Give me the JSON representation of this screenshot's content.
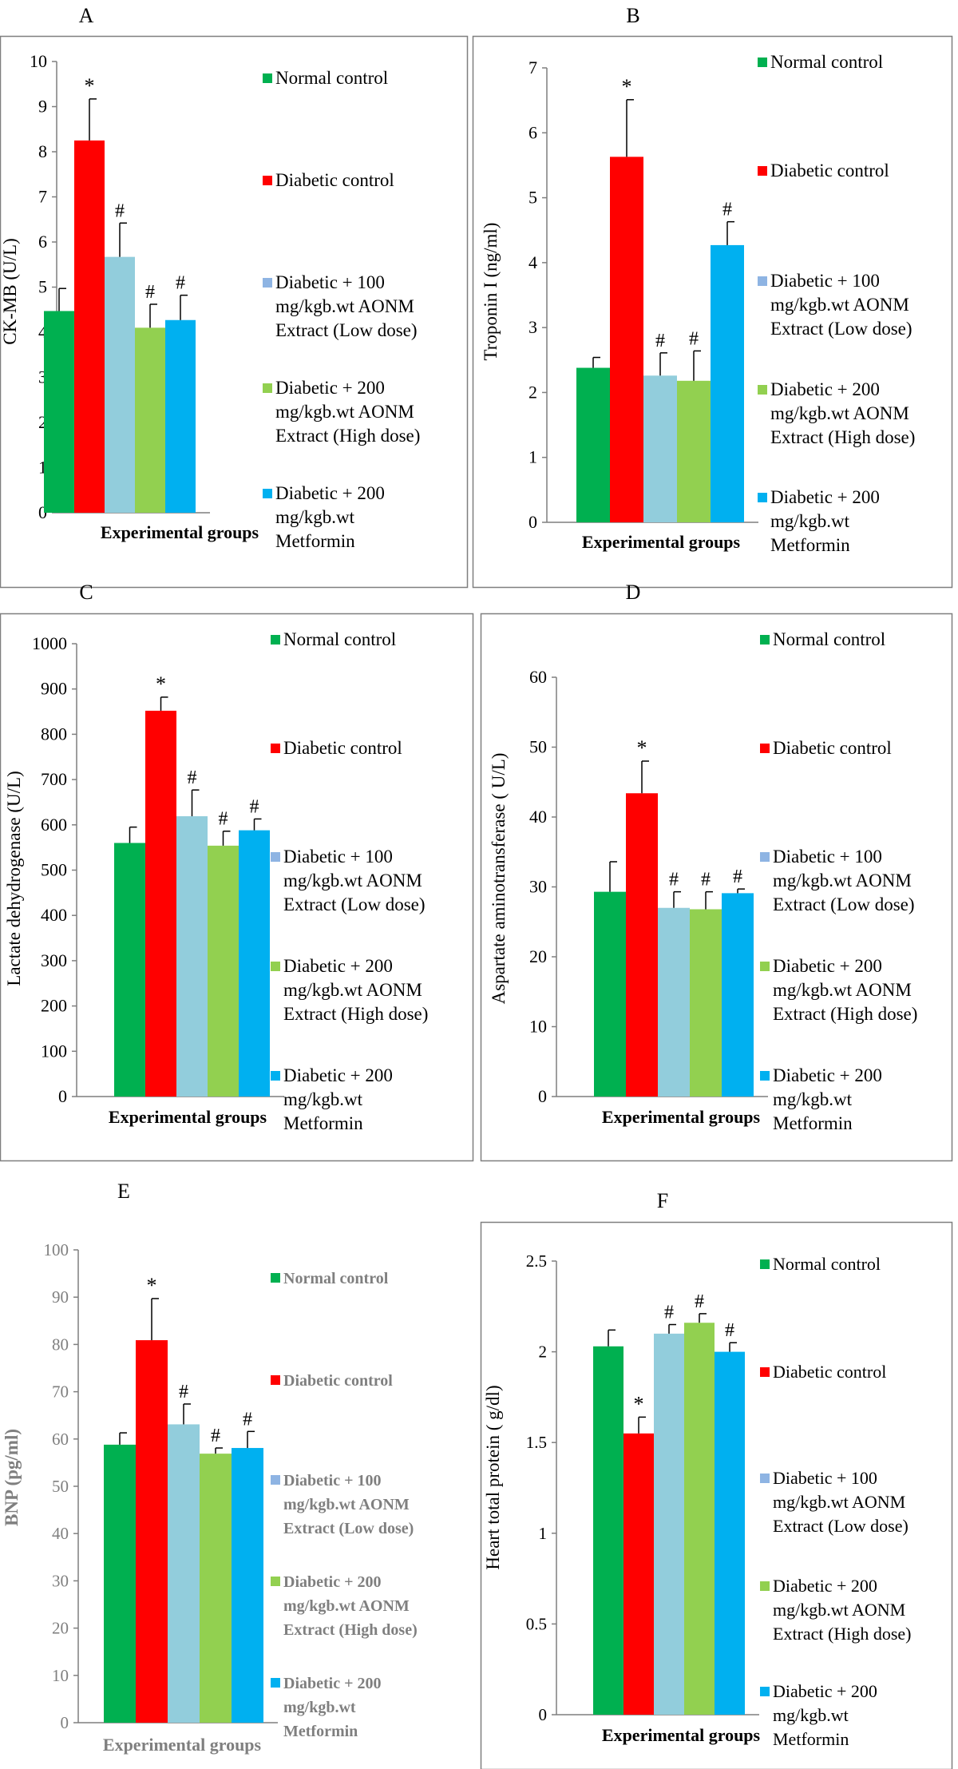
{
  "colors": {
    "normal": "#00B050",
    "diabetic": "#FF0000",
    "low": "#92CDDC",
    "high": "#92D050",
    "metformin": "#00B0F0",
    "low_legend": "#8EB4E3",
    "axis": "#7F7F7F",
    "border": "#7F7F7F",
    "grey_text": "#7F7F7F"
  },
  "legend": [
    {
      "lines": [
        "Normal control"
      ]
    },
    {
      "lines": [
        "Diabetic control"
      ]
    },
    {
      "lines": [
        "Diabetic + 100",
        "mg/kgb.wt AONM",
        "Extract (Low dose)"
      ]
    },
    {
      "lines": [
        "Diabetic + 200",
        "mg/kgb.wt AONM",
        "Extract (High dose)"
      ]
    },
    {
      "lines": [
        "Diabetic + 200",
        "mg/kgb.wt",
        "Metformin"
      ]
    }
  ],
  "chart_data": [
    {
      "type": "bar",
      "panel": "A",
      "title": "A",
      "xlabel": "Experimental groups",
      "ylabel": "CK-MB (U/L)",
      "ylim": [
        0,
        10
      ],
      "yticks": [
        "0",
        "1",
        "2",
        "3",
        "4",
        "5",
        "6",
        "7",
        "8",
        "9",
        "10"
      ],
      "categories": [
        "Normal control",
        "Diabetic control",
        "Diabetic + 100 mg/kgb.wt AONM Extract (Low dose)",
        "Diabetic + 200 mg/kgb.wt AONM Extract (High dose)",
        "Diabetic + 200 mg/kgb.wt Metformin"
      ],
      "values": [
        4.47,
        8.25,
        5.67,
        4.1,
        4.27
      ],
      "errors": [
        0.5,
        0.92,
        0.75,
        0.52,
        0.55
      ],
      "marks": [
        "",
        "*",
        "#",
        "#",
        "#"
      ]
    },
    {
      "type": "bar",
      "panel": "B",
      "title": "B",
      "xlabel": "Experimental groups",
      "ylabel": "Troponin I (ng/ml)",
      "ylim": [
        0,
        7
      ],
      "yticks": [
        "0",
        "1",
        "2",
        "3",
        "4",
        "5",
        "6",
        "7"
      ],
      "categories": [
        "Normal control",
        "Diabetic control",
        "Diabetic + 100 mg/kgb.wt AONM Extract (Low dose)",
        "Diabetic + 200 mg/kgb.wt AONM Extract (High dose)",
        "Diabetic + 200 mg/kgb.wt Metformin"
      ],
      "values": [
        2.38,
        5.63,
        2.26,
        2.18,
        4.27
      ],
      "errors": [
        0.16,
        0.88,
        0.35,
        0.46,
        0.36
      ],
      "marks": [
        "",
        "*",
        "#",
        "#",
        "#"
      ]
    },
    {
      "type": "bar",
      "panel": "C",
      "title": "C",
      "xlabel": "Experimental groups",
      "ylabel": "Lactate dehydrogenase (U/L)",
      "ylim": [
        0,
        1000
      ],
      "yticks": [
        "0",
        "100",
        "200",
        "300",
        "400",
        "500",
        "600",
        "700",
        "800",
        "900",
        "1000"
      ],
      "categories": [
        "Normal control",
        "Diabetic control",
        "Diabetic + 100 mg/kgb.wt AONM Extract (Low dose)",
        "Diabetic + 200 mg/kgb.wt AONM Extract (High dose)",
        "Diabetic + 200 mg/kgb.wt Metformin"
      ],
      "values": [
        560,
        852,
        619,
        554,
        588
      ],
      "errors": [
        35,
        30,
        58,
        32,
        25
      ],
      "marks": [
        "",
        "*",
        "#",
        "#",
        "#"
      ]
    },
    {
      "type": "bar",
      "panel": "D",
      "title": "D",
      "xlabel": "Experimental groups",
      "ylabel": "Aspartate aminotransferase ( U/L)",
      "ylim": [
        0,
        60
      ],
      "yticks": [
        "0",
        "10",
        "20",
        "30",
        "40",
        "50",
        "60"
      ],
      "categories": [
        "Normal control",
        "Diabetic control",
        "Diabetic + 100 mg/kgb.wt AONM Extract (Low dose)",
        "Diabetic + 200 mg/kgb.wt AONM Extract (High dose)",
        "Diabetic + 200 mg/kgb.wt Metformin"
      ],
      "values": [
        29.3,
        43.4,
        27.0,
        26.8,
        29.1
      ],
      "errors": [
        4.3,
        4.6,
        2.3,
        2.5,
        0.6
      ],
      "marks": [
        "",
        "*",
        "#",
        "#",
        "#"
      ]
    },
    {
      "type": "bar",
      "panel": "E",
      "title": "E",
      "xlabel": "Experimental groups",
      "ylabel": "BNP (pg/ml)",
      "ylim": [
        0,
        100
      ],
      "yticks": [
        "0",
        "10",
        "20",
        "30",
        "40",
        "50",
        "60",
        "70",
        "80",
        "90",
        "100"
      ],
      "categories": [
        "Normal control",
        "Diabetic control",
        "Diabetic + 100 mg/kgb.wt AONM Extract (Low dose)",
        "Diabetic + 200 mg/kgb.wt AONM Extract (High dose)",
        "Diabetic + 200 mg/kgb.wt Metformin"
      ],
      "values": [
        58.8,
        80.9,
        63.1,
        56.9,
        58.1
      ],
      "errors": [
        2.5,
        8.8,
        4.3,
        1.2,
        3.5
      ],
      "marks": [
        "",
        "*",
        "#",
        "#",
        "#"
      ]
    },
    {
      "type": "bar",
      "panel": "F",
      "title": "F",
      "xlabel": "Experimental groups",
      "ylabel": "Heart total protein ( g/dl)",
      "ylim": [
        0,
        2.5
      ],
      "yticks": [
        "0",
        "0.5",
        "1",
        "1.5",
        "2",
        "2.5"
      ],
      "categories": [
        "Normal control",
        "Diabetic control",
        "Diabetic + 100 mg/kgb.wt AONM Extract (Low dose)",
        "Diabetic + 200 mg/kgb.wt AONM Extract (High dose)",
        "Diabetic + 200 mg/kgb.wt Metformin"
      ],
      "values": [
        2.03,
        1.55,
        2.1,
        2.16,
        2.0
      ],
      "errors": [
        0.09,
        0.09,
        0.05,
        0.05,
        0.05
      ],
      "marks": [
        "",
        "*",
        "#",
        "#",
        "#"
      ]
    }
  ]
}
